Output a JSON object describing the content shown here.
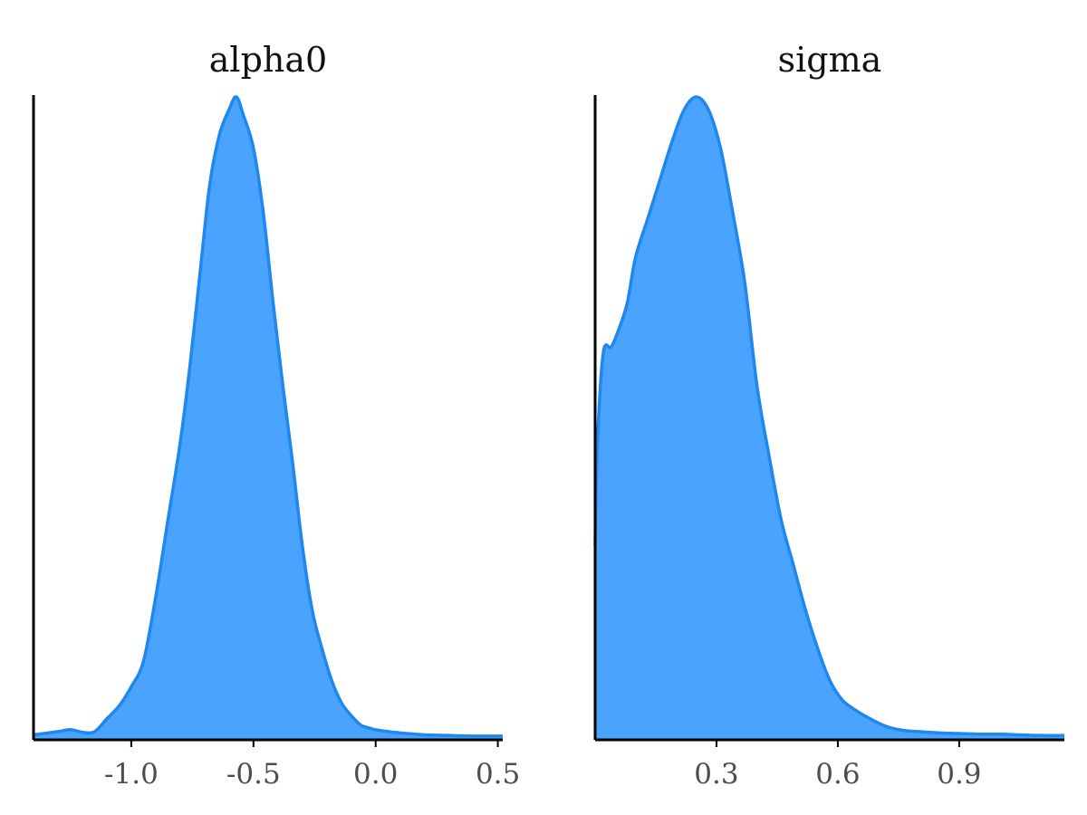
{
  "chart_data": [
    {
      "type": "area",
      "title": "alpha0",
      "xlabel": "",
      "ylabel": "",
      "xlim": [
        -1.4,
        0.52
      ],
      "ylim": [
        0,
        1
      ],
      "y_axis_ticks_shown": false,
      "x_ticks": [
        {
          "value": -1.0,
          "label": "-1.0"
        },
        {
          "value": -0.5,
          "label": "-0.5"
        },
        {
          "value": 0.0,
          "label": "0.0"
        },
        {
          "value": 0.5,
          "label": "0.5"
        }
      ],
      "series": [
        {
          "x": [
            -1.4,
            -1.3,
            -1.25,
            -1.2,
            -1.15,
            -1.1,
            -1.05,
            -1.0,
            -0.95,
            -0.9,
            -0.85,
            -0.8,
            -0.76,
            -0.72,
            -0.68,
            -0.64,
            -0.6,
            -0.57,
            -0.54,
            -0.5,
            -0.46,
            -0.42,
            -0.38,
            -0.34,
            -0.3,
            -0.26,
            -0.22,
            -0.18,
            -0.14,
            -0.1,
            -0.06,
            -0.02,
            0.0,
            0.05,
            0.1,
            0.2,
            0.3,
            0.4,
            0.52
          ],
          "y": [
            0.005,
            0.01,
            0.013,
            0.009,
            0.01,
            0.03,
            0.05,
            0.08,
            0.12,
            0.22,
            0.34,
            0.46,
            0.58,
            0.72,
            0.86,
            0.94,
            0.98,
            1.0,
            0.97,
            0.92,
            0.82,
            0.68,
            0.55,
            0.43,
            0.3,
            0.2,
            0.14,
            0.09,
            0.055,
            0.035,
            0.02,
            0.015,
            0.013,
            0.01,
            0.008,
            0.005,
            0.004,
            0.003,
            0.003
          ]
        }
      ]
    },
    {
      "type": "area",
      "title": "sigma",
      "xlabel": "",
      "ylabel": "",
      "xlim": [
        0.0,
        1.16
      ],
      "ylim": [
        0,
        1
      ],
      "y_axis_ticks_shown": false,
      "x_ticks": [
        {
          "value": 0.3,
          "label": "0.3"
        },
        {
          "value": 0.6,
          "label": "0.6"
        },
        {
          "value": 0.9,
          "label": "0.9"
        }
      ],
      "series": [
        {
          "x": [
            0.0,
            0.005,
            0.02,
            0.04,
            0.06,
            0.08,
            0.1,
            0.13,
            0.16,
            0.19,
            0.22,
            0.25,
            0.28,
            0.31,
            0.34,
            0.37,
            0.4,
            0.43,
            0.46,
            0.49,
            0.52,
            0.55,
            0.58,
            0.61,
            0.64,
            0.68,
            0.72,
            0.76,
            0.8,
            0.85,
            0.9,
            0.95,
            1.0,
            1.05,
            1.1,
            1.16
          ],
          "y": [
            0.3,
            0.45,
            0.6,
            0.61,
            0.64,
            0.68,
            0.75,
            0.81,
            0.87,
            0.93,
            0.98,
            1.0,
            0.98,
            0.92,
            0.82,
            0.71,
            0.55,
            0.44,
            0.34,
            0.27,
            0.2,
            0.14,
            0.09,
            0.06,
            0.045,
            0.03,
            0.018,
            0.012,
            0.01,
            0.008,
            0.007,
            0.006,
            0.006,
            0.005,
            0.004,
            0.004
          ]
        }
      ]
    }
  ],
  "colors": {
    "fill": "#4aa3ff",
    "line": "#1e88f0",
    "axis": "#000000",
    "tick_label": "#4d4d4d"
  }
}
